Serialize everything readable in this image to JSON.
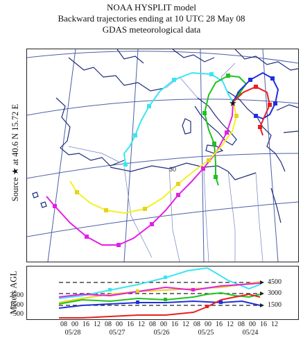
{
  "header": {
    "line1": "NOAA HYSPLIT model",
    "line2": "Backward trajectories ending at 10 UTC 28 May 08",
    "line3": "GDAS meteorological data"
  },
  "map": {
    "side_label": "Source ★ at 40.6 N 15.72 E",
    "source_lat": 40.6,
    "source_lon": 15.72,
    "gridline_labels": [
      "30"
    ],
    "colors": {
      "red": "#e8201e",
      "blue": "#1f2fd9",
      "green": "#1ec21e",
      "cyan": "#39e5f2",
      "magenta": "#e51ee5",
      "yellow": "#f2f21e",
      "coast": "#1e2a7a",
      "grid": "#4a5fa8"
    }
  },
  "profile": {
    "ylabel": "Meters AGL",
    "ytick_labels": [
      "2500",
      "1500",
      "500"
    ],
    "reference_levels": [
      "4500",
      "3000",
      "1500"
    ],
    "hour_labels": [
      "08",
      "00",
      "16",
      "12",
      "08",
      "00",
      "16",
      "12",
      "08",
      "00",
      "16",
      "12",
      "08",
      "00",
      "16",
      "12",
      "08",
      "00",
      "16",
      "12"
    ],
    "date_labels": [
      "05/28",
      "05/27",
      "05/26",
      "05/25",
      "05/24"
    ]
  }
}
